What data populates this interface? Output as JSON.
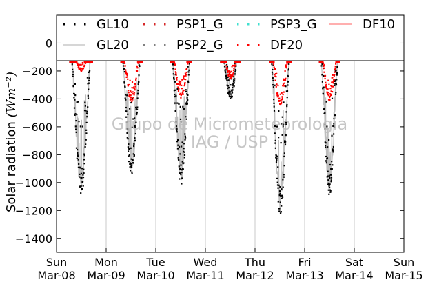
{
  "chart_data": {
    "type": "scatter",
    "title": "",
    "ylabel": "Solar radiation",
    "ylabel_units": "(Wm⁻²)",
    "ylim": [
      -1500,
      200
    ],
    "yticks": [
      0,
      -200,
      -400,
      -600,
      -800,
      -1000,
      -1200,
      -1400
    ],
    "grid": "vertical",
    "legend_position": "top",
    "watermark": [
      "Grupo de Micrometeorologia",
      "IAG / USP"
    ],
    "x_ticks": [
      {
        "day": "Sun",
        "date": "Mar-08"
      },
      {
        "day": "Mon",
        "date": "Mar-09"
      },
      {
        "day": "Tue",
        "date": "Mar-10"
      },
      {
        "day": "Wed",
        "date": "Mar-11"
      },
      {
        "day": "Thu",
        "date": "Mar-12"
      },
      {
        "day": "Fri",
        "date": "Mar-13"
      },
      {
        "day": "Sat",
        "date": "Mar-14"
      },
      {
        "day": "Sun",
        "date": "Mar-15"
      }
    ],
    "series": [
      {
        "name": "GL10",
        "style": "dotted",
        "color": "#000000",
        "days": [
          {
            "date": "Mar-08",
            "rise": 0.27,
            "set": 0.72,
            "peak": -1100
          },
          {
            "date": "Mar-09",
            "rise": 0.3,
            "set": 0.72,
            "peak": -970
          },
          {
            "date": "Mar-10",
            "rise": 0.3,
            "set": 0.72,
            "peak": -1030
          },
          {
            "date": "Mar-11",
            "rise": 0.31,
            "set": 0.7,
            "peak": -410
          },
          {
            "date": "Mar-12",
            "rise": 0.3,
            "set": 0.72,
            "peak": -1240
          },
          {
            "date": "Mar-13",
            "rise": 0.3,
            "set": 0.7,
            "peak": -1090
          }
        ]
      },
      {
        "name": "GL20",
        "style": "line",
        "color": "#bdbdbd",
        "days": [
          {
            "date": "Mar-08",
            "rise": 0.27,
            "set": 0.72,
            "peak": -1080
          },
          {
            "date": "Mar-09",
            "rise": 0.3,
            "set": 0.72,
            "peak": -950
          },
          {
            "date": "Mar-10",
            "rise": 0.3,
            "set": 0.72,
            "peak": -1010
          },
          {
            "date": "Mar-11",
            "rise": 0.31,
            "set": 0.7,
            "peak": -400
          },
          {
            "date": "Mar-12",
            "rise": 0.3,
            "set": 0.72,
            "peak": -1230
          },
          {
            "date": "Mar-13",
            "rise": 0.3,
            "set": 0.7,
            "peak": -1070
          }
        ]
      },
      {
        "name": "PSP1_G",
        "style": "dotted",
        "color": "#d62728",
        "days": []
      },
      {
        "name": "PSP2_G",
        "style": "dotted",
        "color": "#808080",
        "days": []
      },
      {
        "name": "PSP3_G",
        "style": "dotted",
        "color": "#40e0d0",
        "days": []
      },
      {
        "name": "DF20",
        "style": "dotted",
        "color": "#ff0000",
        "days": [
          {
            "date": "Mar-08",
            "rise": 0.27,
            "set": 0.72,
            "peak": -200
          },
          {
            "date": "Mar-09",
            "rise": 0.3,
            "set": 0.72,
            "peak": -420
          },
          {
            "date": "Mar-10",
            "rise": 0.3,
            "set": 0.72,
            "peak": -400
          },
          {
            "date": "Mar-11",
            "rise": 0.31,
            "set": 0.7,
            "peak": -260
          },
          {
            "date": "Mar-12",
            "rise": 0.3,
            "set": 0.72,
            "peak": -450
          },
          {
            "date": "Mar-13",
            "rise": 0.3,
            "set": 0.7,
            "peak": -410
          }
        ]
      },
      {
        "name": "DF10",
        "style": "line",
        "color": "#ff7f7f",
        "days": []
      }
    ]
  }
}
